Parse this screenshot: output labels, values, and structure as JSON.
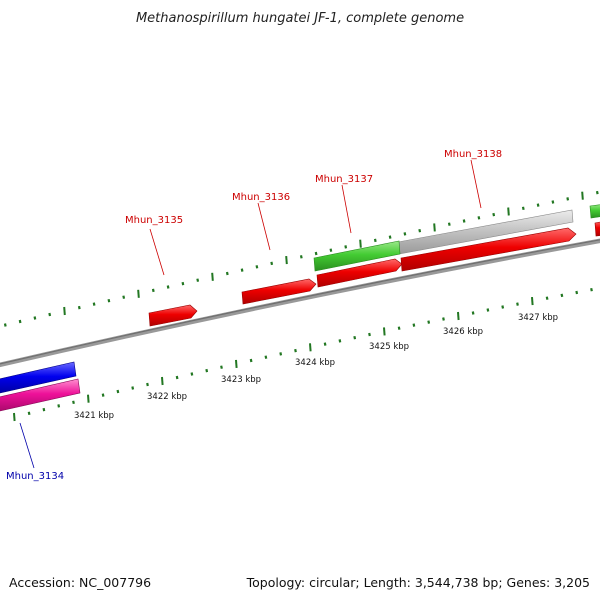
{
  "title": "Methanospirillum hungatei JF-1, complete genome",
  "footer": {
    "accession": "Accession: NC_007796",
    "summary": "Topology: circular; Length: 3,544,738 bp; Genes: 3,205"
  },
  "colors": {
    "forward_cds": "#ee0000",
    "forward_rna": "#44cc33",
    "forward_other": "#c0c0c0",
    "reverse_cds": "#0000ee",
    "reverse_other": "#ee1199",
    "backbone": "#888888",
    "tick": "#227722",
    "label_forward": "#cc0000",
    "label_reverse": "#0000aa"
  },
  "scale": {
    "tick_labels": [
      "3421 kbp",
      "3422 kbp",
      "3423 kbp",
      "3424 kbp",
      "3425 kbp",
      "3426 kbp",
      "3427 kbp"
    ]
  },
  "genes": {
    "labels": [
      {
        "name": "Mhun_3134",
        "strand": "reverse"
      },
      {
        "name": "Mhun_3135",
        "strand": "forward"
      },
      {
        "name": "Mhun_3136",
        "strand": "forward"
      },
      {
        "name": "Mhun_3137",
        "strand": "forward"
      },
      {
        "name": "Mhun_3138",
        "strand": "forward"
      }
    ]
  }
}
